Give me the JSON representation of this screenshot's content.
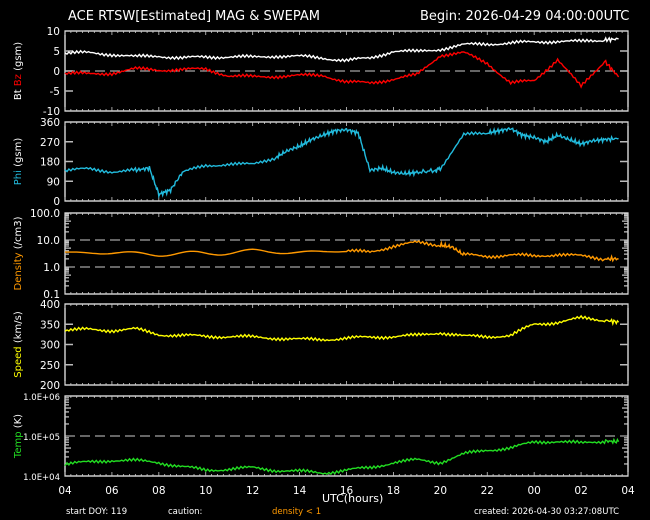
{
  "header": {
    "title": "ACE RTSW[Estimated] MAG & SWEPAM",
    "begin": "Begin: 2026-04-29 04:00:00UTC"
  },
  "footer": {
    "start_doy": "start DOY: 119",
    "caution_label": "caution:",
    "caution_value": "density < 1",
    "created": "created: 2026-04-30 03:27:08UTC"
  },
  "colors": {
    "bt": "#ffffff",
    "bz": "#ff0000",
    "phi": "#22bbdd",
    "density": "#ff9900",
    "speed": "#ffff00",
    "temp": "#22dd22",
    "axis": "#ffffff",
    "dashed": "#cccccc"
  },
  "chart_data": [
    {
      "type": "line",
      "title": "Bt / Bz",
      "ylabel": "Bt Bz (gsm)",
      "ylim": [
        -10,
        10
      ],
      "yticks": [
        "10",
        "5",
        "0",
        "-5",
        "-10"
      ],
      "x": [
        4,
        5,
        6,
        7,
        8,
        9,
        10,
        11,
        12,
        13,
        14,
        15,
        16,
        17,
        18,
        19,
        20,
        21,
        22,
        23,
        0,
        1,
        2,
        3,
        3.6
      ],
      "series": [
        {
          "name": "Bt",
          "color": "#ffffff",
          "values": [
            4.5,
            4.5,
            4.2,
            3.5,
            3.8,
            3.2,
            3.5,
            3.6,
            3.4,
            3.8,
            3.6,
            3.3,
            2.6,
            3.2,
            5.0,
            4.8,
            5.5,
            6.5,
            6.8,
            7.0,
            7.2,
            7.5,
            7.3,
            7.8,
            8.0
          ]
        },
        {
          "name": "Bz",
          "color": "#ff0000",
          "values": [
            -0.5,
            -0.8,
            -0.5,
            0.5,
            0.3,
            0.3,
            0.5,
            -1.2,
            -1.5,
            -1.3,
            -1.2,
            -1.0,
            -2.8,
            -3.0,
            -2.0,
            -1.0,
            4.0,
            4.5,
            2.0,
            -3.0,
            -2.5,
            3.0,
            -4.0,
            2.5,
            -1.5
          ]
        }
      ],
      "hline_dashed": 0
    },
    {
      "type": "scatter",
      "title": "Phi",
      "ylabel": "Phi (gsm)",
      "ylim": [
        0,
        360
      ],
      "yticks": [
        "360",
        "270",
        "180",
        "90",
        "0"
      ],
      "x": [
        4,
        5,
        6,
        7,
        7.6,
        8,
        8.5,
        9,
        10,
        11,
        12,
        13,
        13.5,
        14,
        14.5,
        15,
        15.5,
        16,
        16.5,
        17,
        17.5,
        18,
        18.5,
        19,
        19.8,
        20,
        21,
        22,
        22.5,
        23,
        23.5,
        0,
        0.5,
        1,
        1.5,
        2,
        2.5,
        3,
        3.6
      ],
      "series": [
        {
          "name": "Phi",
          "color": "#22bbdd",
          "values": [
            140,
            145,
            135,
            140,
            150,
            30,
            50,
            130,
            160,
            170,
            165,
            200,
            230,
            250,
            280,
            300,
            320,
            325,
            310,
            140,
            150,
            130,
            125,
            130,
            140,
            150,
            300,
            310,
            320,
            330,
            300,
            290,
            270,
            300,
            280,
            260,
            275,
            280,
            285
          ]
        }
      ]
    },
    {
      "type": "scatter",
      "title": "Density",
      "ylabel": "Density (/cm3)",
      "yscale": "log",
      "ylim": [
        0.1,
        100.0
      ],
      "yticks": [
        "100.0",
        "10.0",
        "1.0",
        "0.1"
      ],
      "hlines_dashed": [
        10.0,
        1.0
      ],
      "x": [
        4,
        6,
        8,
        10,
        12,
        14,
        16,
        17,
        18,
        19,
        20,
        20.5,
        21,
        22,
        23,
        0,
        1,
        2,
        3,
        3.6
      ],
      "series": [
        {
          "name": "Density",
          "color": "#ff9900",
          "values": [
            3.5,
            3.3,
            3.0,
            3.2,
            3.8,
            3.5,
            3.8,
            3.6,
            6.0,
            8.0,
            6.5,
            5.5,
            2.8,
            2.5,
            2.8,
            2.5,
            3.0,
            2.5,
            2.0,
            2.0
          ]
        }
      ]
    },
    {
      "type": "scatter",
      "title": "Speed",
      "ylabel": "Speed (km/s)",
      "ylim": [
        200,
        400
      ],
      "yticks": [
        "400",
        "350",
        "300",
        "250",
        "200"
      ],
      "x": [
        4,
        5,
        6,
        7,
        8,
        9,
        10,
        11,
        12,
        13,
        14,
        15,
        16,
        17,
        18,
        19,
        20,
        21,
        22,
        23,
        0,
        1,
        2,
        3,
        3.6
      ],
      "series": [
        {
          "name": "Speed",
          "color": "#ffff00",
          "values": [
            335,
            337,
            335,
            338,
            325,
            322,
            320,
            320,
            318,
            316,
            312,
            313,
            315,
            318,
            320,
            322,
            330,
            320,
            320,
            322,
            350,
            355,
            365,
            360,
            355
          ]
        }
      ]
    },
    {
      "type": "scatter",
      "title": "Temp",
      "ylabel": "Temp (K)",
      "yscale": "log",
      "ylim": [
        10000,
        1000000
      ],
      "yticks": [
        "1.0E+06",
        "1.0E+05",
        "1.0E+04"
      ],
      "hline_dashed": 100000,
      "x": [
        4,
        5,
        6,
        7,
        8,
        9,
        10,
        11,
        12,
        13,
        14,
        15,
        16,
        17,
        18,
        19,
        20,
        21,
        22,
        23,
        0,
        1,
        2,
        3,
        3.6
      ],
      "series": [
        {
          "name": "Temp",
          "color": "#22dd22",
          "values": [
            20000,
            22000,
            25000,
            24000,
            22000,
            17000,
            14000,
            15000,
            16000,
            14000,
            13000,
            12000,
            14000,
            16000,
            22000,
            25000,
            22000,
            35000,
            45000,
            50000,
            70000,
            75000,
            65000,
            75000,
            72000
          ]
        }
      ]
    }
  ],
  "xaxis": {
    "title": "UTC(hours)",
    "ticks": [
      "04",
      "06",
      "08",
      "10",
      "12",
      "14",
      "16",
      "18",
      "20",
      "22",
      "00",
      "02",
      "04"
    ]
  },
  "panels": [
    {
      "label_parts": [
        {
          "text": "Bt",
          "color": "#ffffff"
        },
        {
          "text": "Bz",
          "color": "#ff0000"
        },
        {
          "text": "(gsm)",
          "color": "#ffffff"
        }
      ]
    },
    {
      "label_parts": [
        {
          "text": "Phi",
          "color": "#22bbdd"
        },
        {
          "text": "(gsm)",
          "color": "#ffffff"
        }
      ]
    },
    {
      "label_parts": [
        {
          "text": "Density",
          "color": "#ff9900"
        },
        {
          "text": "(/cm3)",
          "color": "#ffffff"
        }
      ]
    },
    {
      "label_parts": [
        {
          "text": "Speed",
          "color": "#ffff00"
        },
        {
          "text": "(km/s)",
          "color": "#ffffff"
        }
      ]
    },
    {
      "label_parts": [
        {
          "text": "Temp",
          "color": "#22dd22"
        },
        {
          "text": "(K)",
          "color": "#ffffff"
        }
      ]
    }
  ]
}
